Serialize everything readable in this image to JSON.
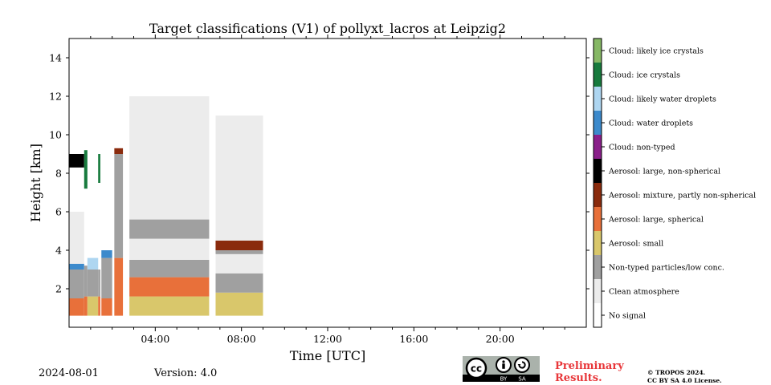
{
  "chart_data": {
    "type": "heatmap",
    "title": "Target classifications (V1) of pollyxt_lacros at Leipzig2",
    "xlabel": "Time [UTC]",
    "ylabel": "Height [km]",
    "xlim_hours": [
      0,
      24
    ],
    "ylim_km": [
      0,
      15
    ],
    "x_ticks": [
      {
        "value": 4,
        "label": "04:00"
      },
      {
        "value": 8,
        "label": "08:00"
      },
      {
        "value": 12,
        "label": "12:00"
      },
      {
        "value": 16,
        "label": "16:00"
      },
      {
        "value": 20,
        "label": "20:00"
      }
    ],
    "y_ticks": [
      {
        "value": 2,
        "label": "2"
      },
      {
        "value": 4,
        "label": "4"
      },
      {
        "value": 6,
        "label": "6"
      },
      {
        "value": 8,
        "label": "8"
      },
      {
        "value": 10,
        "label": "10"
      },
      {
        "value": 12,
        "label": "12"
      },
      {
        "value": 14,
        "label": "14"
      }
    ],
    "classes": [
      {
        "id": 0,
        "label": "No signal",
        "color": "#ffffff"
      },
      {
        "id": 1,
        "label": "Clean atmosphere",
        "color": "#ececec"
      },
      {
        "id": 2,
        "label": "Non-typed particles/low conc.",
        "color": "#a0a0a0"
      },
      {
        "id": 3,
        "label": "Aerosol: small",
        "color": "#d9c76b"
      },
      {
        "id": 4,
        "label": "Aerosol: large, spherical",
        "color": "#e8703a"
      },
      {
        "id": 5,
        "label": "Aerosol: mixture, partly non-spherical",
        "color": "#8a2b0d"
      },
      {
        "id": 6,
        "label": "Aerosol: large, non-spherical",
        "color": "#000000"
      },
      {
        "id": 7,
        "label": "Cloud: non-typed",
        "color": "#8a1f8a"
      },
      {
        "id": 8,
        "label": "Cloud: water droplets",
        "color": "#3c8acc"
      },
      {
        "id": 9,
        "label": "Cloud: likely water droplets",
        "color": "#aed6f1"
      },
      {
        "id": 10,
        "label": "Cloud: ice crystals",
        "color": "#177a3d"
      },
      {
        "id": 11,
        "label": "Cloud: likely ice crystals",
        "color": "#86b865"
      }
    ],
    "data_segments": [
      {
        "start_h": 0.0,
        "end_h": 0.7,
        "profile": [
          [
            0.6,
            1.5,
            4
          ],
          [
            1.5,
            3.0,
            2
          ],
          [
            3.0,
            3.3,
            8
          ],
          [
            3.3,
            6.0,
            1
          ],
          [
            8.3,
            9.0,
            6
          ]
        ]
      },
      {
        "start_h": 0.7,
        "end_h": 0.85,
        "profile": [
          [
            0.6,
            1.6,
            4
          ],
          [
            1.6,
            3.2,
            2
          ],
          [
            7.2,
            9.2,
            10
          ]
        ]
      },
      {
        "start_h": 0.85,
        "end_h": 1.35,
        "profile": [
          [
            0.6,
            1.6,
            3
          ],
          [
            1.6,
            3.0,
            2
          ],
          [
            3.0,
            3.6,
            9
          ]
        ]
      },
      {
        "start_h": 1.35,
        "end_h": 1.45,
        "profile": [
          [
            0.6,
            1.6,
            4
          ],
          [
            1.6,
            3.0,
            2
          ],
          [
            7.5,
            9.0,
            10
          ]
        ]
      },
      {
        "start_h": 1.5,
        "end_h": 2.0,
        "profile": [
          [
            0.6,
            1.5,
            4
          ],
          [
            1.5,
            3.6,
            2
          ],
          [
            3.6,
            4.0,
            8
          ]
        ]
      },
      {
        "start_h": 2.1,
        "end_h": 2.5,
        "profile": [
          [
            0.6,
            3.6,
            4
          ],
          [
            3.6,
            9.0,
            2
          ],
          [
            9.0,
            9.3,
            5
          ]
        ]
      },
      {
        "start_h": 2.8,
        "end_h": 6.5,
        "profile": [
          [
            0.6,
            1.6,
            3
          ],
          [
            1.6,
            2.6,
            4
          ],
          [
            2.6,
            3.5,
            2
          ],
          [
            3.5,
            4.6,
            1
          ],
          [
            4.6,
            5.6,
            2
          ],
          [
            5.6,
            12.0,
            1
          ]
        ]
      },
      {
        "start_h": 6.8,
        "end_h": 9.0,
        "profile": [
          [
            0.6,
            1.8,
            3
          ],
          [
            1.8,
            2.8,
            2
          ],
          [
            2.8,
            3.8,
            1
          ],
          [
            3.8,
            4.5,
            2
          ],
          [
            4.0,
            4.5,
            5
          ],
          [
            4.5,
            11.0,
            1
          ]
        ]
      }
    ]
  },
  "footer": {
    "date": "2024-08-01",
    "version": "Version: 4.0",
    "cc_icon": "cc-by-sa-icon",
    "cc_by": "BY",
    "cc_sa": "SA",
    "preliminary_line1": "Preliminary",
    "preliminary_line2": "Results.",
    "copyright_line1": "© TROPOS 2024.",
    "copyright_line2": "CC BY SA 4.0 License."
  }
}
